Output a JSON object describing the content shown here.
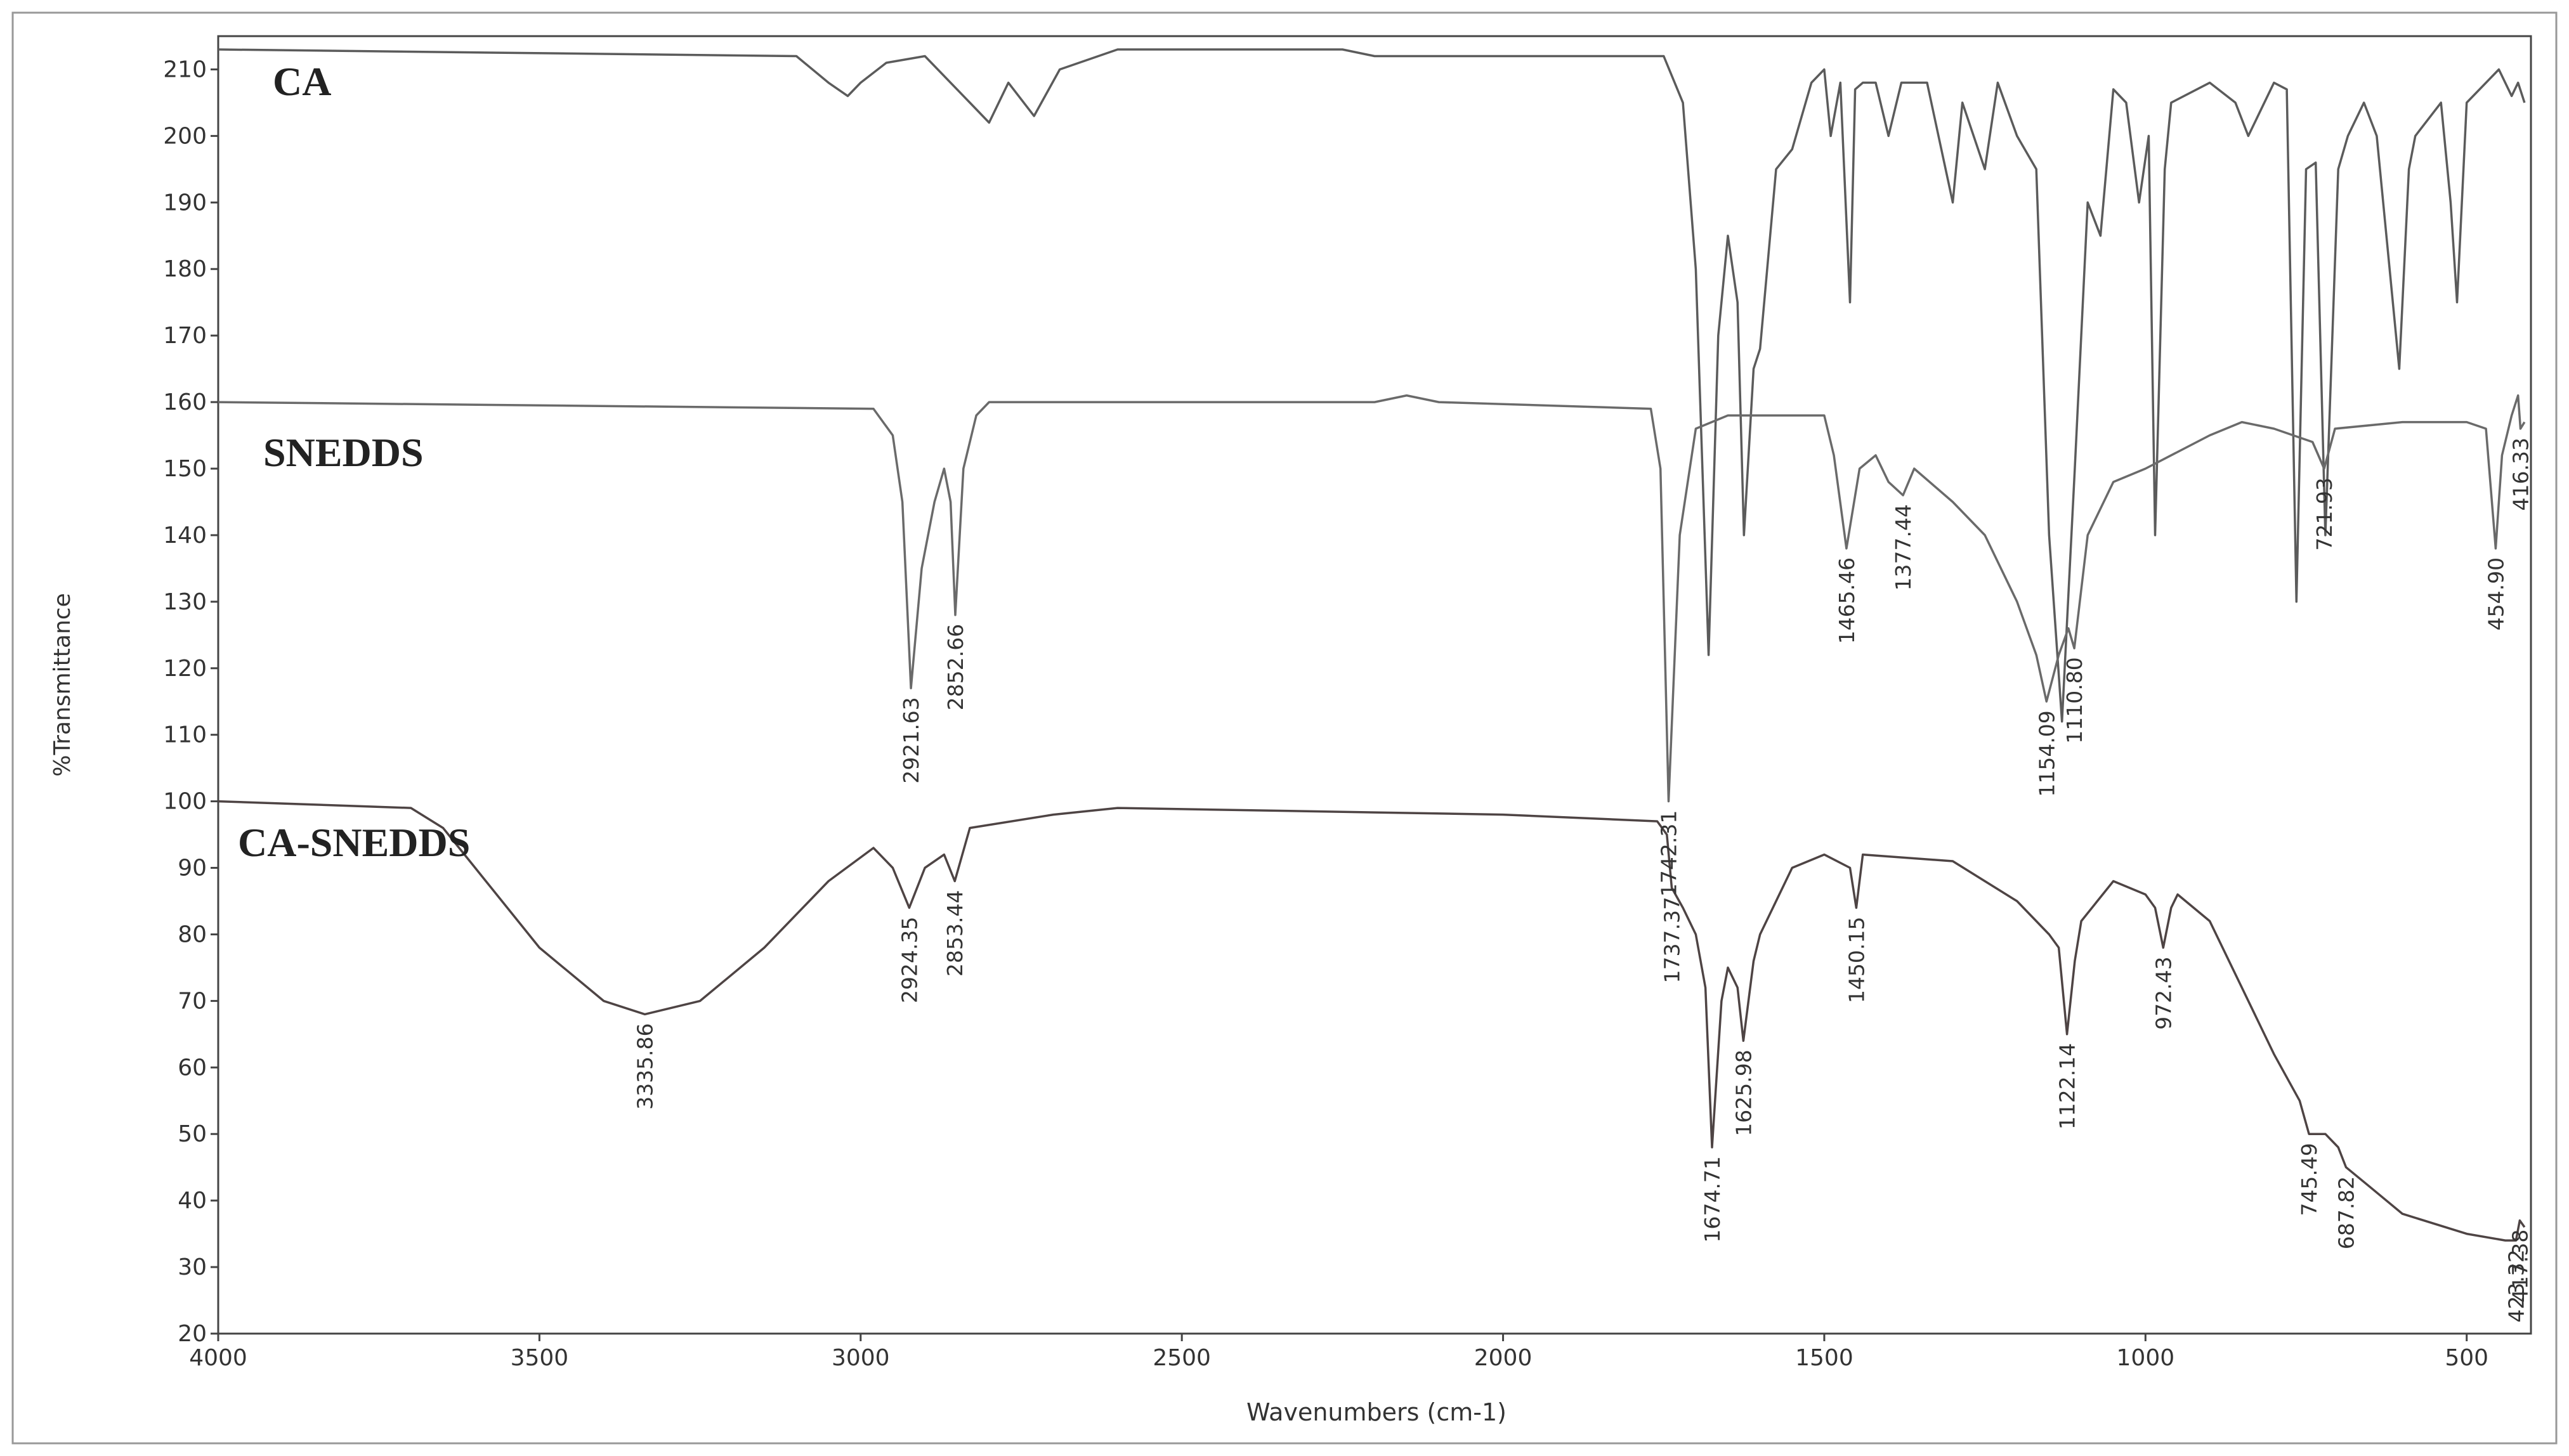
{
  "chart_data": {
    "type": "line",
    "xlabel": "Wavenumbers (cm-1)",
    "ylabel": "%Transmittance",
    "xlim": [
      4000,
      400
    ],
    "xticks": [
      4000,
      3500,
      3000,
      2500,
      2000,
      1500,
      1000,
      500
    ],
    "ylim": [
      20,
      215
    ],
    "yticks": [
      20,
      30,
      40,
      50,
      60,
      70,
      80,
      90,
      100,
      110,
      120,
      130,
      140,
      150,
      160,
      170,
      180,
      190,
      200,
      210
    ],
    "grid": false,
    "series": [
      {
        "name": "CA",
        "color": "#5b5b5b",
        "x": [
          4000,
          3100,
          3050,
          3020,
          3000,
          2960,
          2900,
          2830,
          2800,
          2770,
          2730,
          2690,
          2600,
          2250,
          2200,
          1750,
          1720,
          1700,
          1680,
          1665,
          1650,
          1635,
          1625,
          1610,
          1600,
          1575,
          1550,
          1520,
          1500,
          1490,
          1475,
          1460,
          1452,
          1440,
          1420,
          1400,
          1380,
          1340,
          1300,
          1285,
          1250,
          1230,
          1200,
          1170,
          1150,
          1130,
          1110,
          1090,
          1070,
          1050,
          1030,
          1010,
          995,
          985,
          970,
          960,
          900,
          860,
          840,
          800,
          780,
          765,
          750,
          735,
          720,
          700,
          685,
          660,
          640,
          620,
          605,
          590,
          580,
          540,
          525,
          515,
          500,
          450,
          430,
          420,
          410
        ],
        "values": [
          213,
          212,
          208,
          206,
          208,
          211,
          212,
          205,
          202,
          208,
          203,
          210,
          213,
          213,
          212,
          212,
          205,
          180,
          122,
          170,
          185,
          175,
          140,
          165,
          168,
          195,
          198,
          208,
          210,
          200,
          208,
          175,
          207,
          208,
          208,
          200,
          208,
          208,
          190,
          205,
          195,
          208,
          200,
          195,
          140,
          112,
          150,
          190,
          185,
          207,
          205,
          190,
          200,
          140,
          195,
          205,
          208,
          205,
          200,
          208,
          207,
          130,
          195,
          196,
          140,
          195,
          200,
          205,
          200,
          180,
          165,
          195,
          200,
          205,
          190,
          175,
          205,
          210,
          206,
          208,
          205
        ]
      },
      {
        "name": "SNEDDS",
        "color": "#6a6a6a",
        "x": [
          4000,
          2980,
          2950,
          2935,
          2921.63,
          2905,
          2885,
          2870,
          2860,
          2852.66,
          2840,
          2820,
          2800,
          2200,
          2150,
          2100,
          1770,
          1755,
          1742.31,
          1725,
          1700,
          1650,
          1500,
          1485,
          1465.46,
          1445,
          1420,
          1400,
          1377.44,
          1360,
          1300,
          1250,
          1200,
          1170,
          1154.09,
          1135,
          1120,
          1110.8,
          1090,
          1050,
          1000,
          900,
          850,
          800,
          740,
          721.93,
          705,
          600,
          500,
          470,
          454.9,
          445,
          430,
          420,
          416.33,
          410
        ],
        "values": [
          160,
          159,
          155,
          145,
          117,
          135,
          145,
          150,
          145,
          128,
          150,
          158,
          160,
          160,
          161,
          160,
          159,
          150,
          100,
          140,
          156,
          158,
          158,
          152,
          138,
          150,
          152,
          148,
          146,
          150,
          145,
          140,
          130,
          122,
          115,
          122,
          126,
          123,
          140,
          148,
          150,
          155,
          157,
          156,
          154,
          150,
          156,
          157,
          157,
          156,
          138,
          152,
          158,
          161,
          156,
          157
        ]
      },
      {
        "name": "CA-SNEDDS",
        "color": "#4e4444",
        "x": [
          4000,
          3700,
          3650,
          3600,
          3500,
          3400,
          3335.86,
          3250,
          3150,
          3050,
          2980,
          2950,
          2924.35,
          2900,
          2870,
          2853.44,
          2830,
          2700,
          2600,
          2000,
          1760,
          1745,
          1737.37,
          1720,
          1700,
          1685,
          1674.71,
          1660,
          1650,
          1635,
          1625.98,
          1610,
          1600,
          1550,
          1500,
          1460,
          1450.15,
          1440,
          1300,
          1250,
          1200,
          1150,
          1135,
          1122.14,
          1110,
          1100,
          1050,
          1000,
          985,
          972.43,
          960,
          950,
          900,
          850,
          800,
          760,
          745.49,
          720,
          700,
          687.82,
          650,
          600,
          500,
          440,
          423.32,
          417.38,
          410
        ],
        "values": [
          100,
          99,
          96,
          90,
          78,
          70,
          68,
          70,
          78,
          88,
          93,
          90,
          84,
          90,
          92,
          88,
          96,
          98,
          99,
          98,
          97,
          95,
          87,
          84,
          80,
          72,
          48,
          70,
          75,
          72,
          64,
          76,
          80,
          90,
          92,
          90,
          84,
          92,
          91,
          88,
          85,
          80,
          78,
          65,
          76,
          82,
          88,
          86,
          84,
          78,
          84,
          86,
          82,
          72,
          62,
          55,
          50,
          50,
          48,
          45,
          42,
          38,
          35,
          34,
          34,
          37,
          36
        ]
      }
    ],
    "annotations": [
      {
        "text": "2921.63",
        "x": 2921.63,
        "y": 117
      },
      {
        "text": "2852.66",
        "x": 2852.66,
        "y": 128
      },
      {
        "text": "1742.31",
        "x": 1742.31,
        "y": 100
      },
      {
        "text": "1465.46",
        "x": 1465.46,
        "y": 138
      },
      {
        "text": "1377.44",
        "x": 1377.44,
        "y": 146
      },
      {
        "text": "1154.09",
        "x": 1154.09,
        "y": 115
      },
      {
        "text": "1110.80",
        "x": 1110.8,
        "y": 123
      },
      {
        "text": "721.93",
        "x": 721.93,
        "y": 150
      },
      {
        "text": "454.90",
        "x": 454.9,
        "y": 138
      },
      {
        "text": "416.33",
        "x": 416.33,
        "y": 156
      },
      {
        "text": "3335.86",
        "x": 3335.86,
        "y": 68
      },
      {
        "text": "2924.35",
        "x": 2924.35,
        "y": 84
      },
      {
        "text": "2853.44",
        "x": 2853.44,
        "y": 88
      },
      {
        "text": "1737.37",
        "x": 1737.37,
        "y": 87
      },
      {
        "text": "1674.71",
        "x": 1674.71,
        "y": 48
      },
      {
        "text": "1625.98",
        "x": 1625.98,
        "y": 64
      },
      {
        "text": "1450.15",
        "x": 1450.15,
        "y": 84
      },
      {
        "text": "1122.14",
        "x": 1122.14,
        "y": 65
      },
      {
        "text": "972.43",
        "x": 972.43,
        "y": 78
      },
      {
        "text": "745.49",
        "x": 745.49,
        "y": 50
      },
      {
        "text": "687.82",
        "x": 687.82,
        "y": 45
      },
      {
        "text": "423.32",
        "x": 423.32,
        "y": 34
      },
      {
        "text": "417.38",
        "x": 417.38,
        "y": 37
      }
    ]
  }
}
